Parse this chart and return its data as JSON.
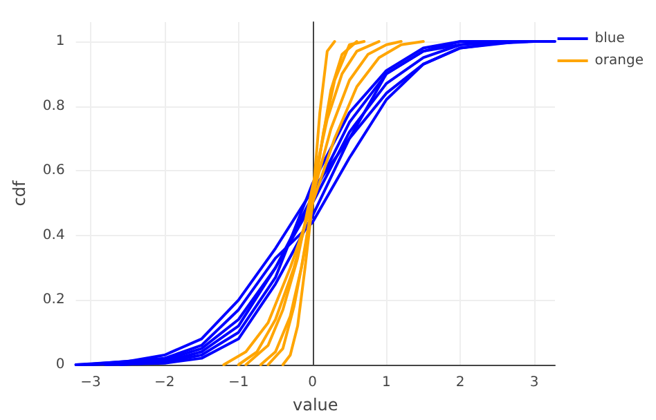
{
  "chart_data": {
    "type": "line",
    "xlabel": "value",
    "ylabel": "cdf",
    "xlim": [
      -3.2,
      3.28
    ],
    "ylim": [
      0,
      1.06
    ],
    "xticks": [
      -3,
      -2,
      -1,
      0,
      1,
      2,
      3
    ],
    "yticks": [
      0,
      0.2,
      0.4,
      0.6,
      0.8,
      1
    ],
    "grid": true,
    "legend": "top right",
    "marker": "none",
    "line_style": "solid",
    "series": [
      {
        "name": "blue",
        "color": "#0000ff",
        "x": [
          -3.2,
          -2.5,
          -2,
          -1.5,
          -1,
          -0.5,
          0,
          0.5,
          1,
          1.5,
          2,
          2.5,
          3,
          3.28
        ],
        "values": [
          0,
          0.005,
          0.015,
          0.05,
          0.14,
          0.3,
          0.5,
          0.72,
          0.87,
          0.95,
          0.99,
          1,
          1,
          1
        ]
      },
      {
        "color": "#0000ff",
        "x": [
          -3.2,
          -2.5,
          -2,
          -1.5,
          -1,
          -0.5,
          0,
          0.5,
          1,
          1.5,
          2,
          2.5,
          3
        ],
        "values": [
          0,
          0.01,
          0.03,
          0.08,
          0.2,
          0.36,
          0.54,
          0.7,
          0.84,
          0.93,
          0.98,
          0.995,
          1
        ]
      },
      {
        "color": "#0000ff",
        "x": [
          -2.8,
          -2,
          -1.5,
          -1,
          -0.5,
          0,
          0.5,
          1,
          1.5,
          2,
          2.5
        ],
        "values": [
          0,
          0.005,
          0.02,
          0.08,
          0.25,
          0.46,
          0.7,
          0.9,
          0.97,
          1,
          1
        ]
      },
      {
        "color": "#0000ff",
        "x": [
          -3,
          -2,
          -1.5,
          -1,
          -0.5,
          0,
          0.5,
          1,
          1.5,
          2,
          2.6
        ],
        "values": [
          0,
          0.01,
          0.04,
          0.12,
          0.3,
          0.52,
          0.75,
          0.9,
          0.97,
          0.99,
          1
        ]
      },
      {
        "color": "#0000ff",
        "x": [
          -3.1,
          -2,
          -1.5,
          -1,
          -0.5,
          0,
          0.5,
          1,
          1.5,
          2,
          2.8
        ],
        "values": [
          0,
          0.02,
          0.06,
          0.17,
          0.33,
          0.44,
          0.64,
          0.82,
          0.93,
          0.98,
          1
        ]
      },
      {
        "color": "#0000ff",
        "x": [
          -2.6,
          -2,
          -1.5,
          -1,
          -0.5,
          0,
          0.5,
          1,
          1.5,
          2,
          2.4
        ],
        "values": [
          0,
          0.008,
          0.03,
          0.1,
          0.27,
          0.56,
          0.78,
          0.91,
          0.98,
          1,
          1
        ]
      },
      {
        "name": "orange",
        "color": "#ffa500",
        "x": [
          -0.4,
          -0.3,
          -0.2,
          -0.1,
          0,
          0.1,
          0.2,
          0.3
        ],
        "values": [
          0,
          0.03,
          0.12,
          0.3,
          0.5,
          0.78,
          0.97,
          1
        ]
      },
      {
        "color": "#ffa500",
        "x": [
          -0.7,
          -0.5,
          -0.3,
          -0.15,
          0,
          0.15,
          0.3,
          0.5,
          0.7
        ],
        "values": [
          0,
          0.04,
          0.15,
          0.3,
          0.5,
          0.72,
          0.88,
          0.99,
          1
        ]
      },
      {
        "color": "#ffa500",
        "x": [
          -1,
          -0.75,
          -0.5,
          -0.25,
          0,
          0.25,
          0.5,
          0.75,
          1,
          1.2
        ],
        "values": [
          0,
          0.04,
          0.14,
          0.3,
          0.52,
          0.73,
          0.88,
          0.96,
          0.99,
          1
        ]
      },
      {
        "color": "#ffa500",
        "x": [
          -1.2,
          -0.9,
          -0.6,
          -0.3,
          0,
          0.3,
          0.6,
          0.9,
          1.2,
          1.5
        ],
        "values": [
          0,
          0.04,
          0.13,
          0.3,
          0.5,
          0.7,
          0.86,
          0.95,
          0.99,
          1
        ]
      },
      {
        "color": "#ffa500",
        "x": [
          -0.6,
          -0.4,
          -0.25,
          -0.1,
          0,
          0.1,
          0.25,
          0.4,
          0.6
        ],
        "values": [
          0,
          0.05,
          0.18,
          0.36,
          0.5,
          0.65,
          0.85,
          0.96,
          1
        ]
      },
      {
        "color": "#ffa500",
        "x": [
          -0.9,
          -0.6,
          -0.4,
          -0.2,
          0,
          0.2,
          0.4,
          0.6,
          0.9
        ],
        "values": [
          0,
          0.06,
          0.17,
          0.33,
          0.55,
          0.76,
          0.9,
          0.97,
          1
        ]
      }
    ]
  }
}
